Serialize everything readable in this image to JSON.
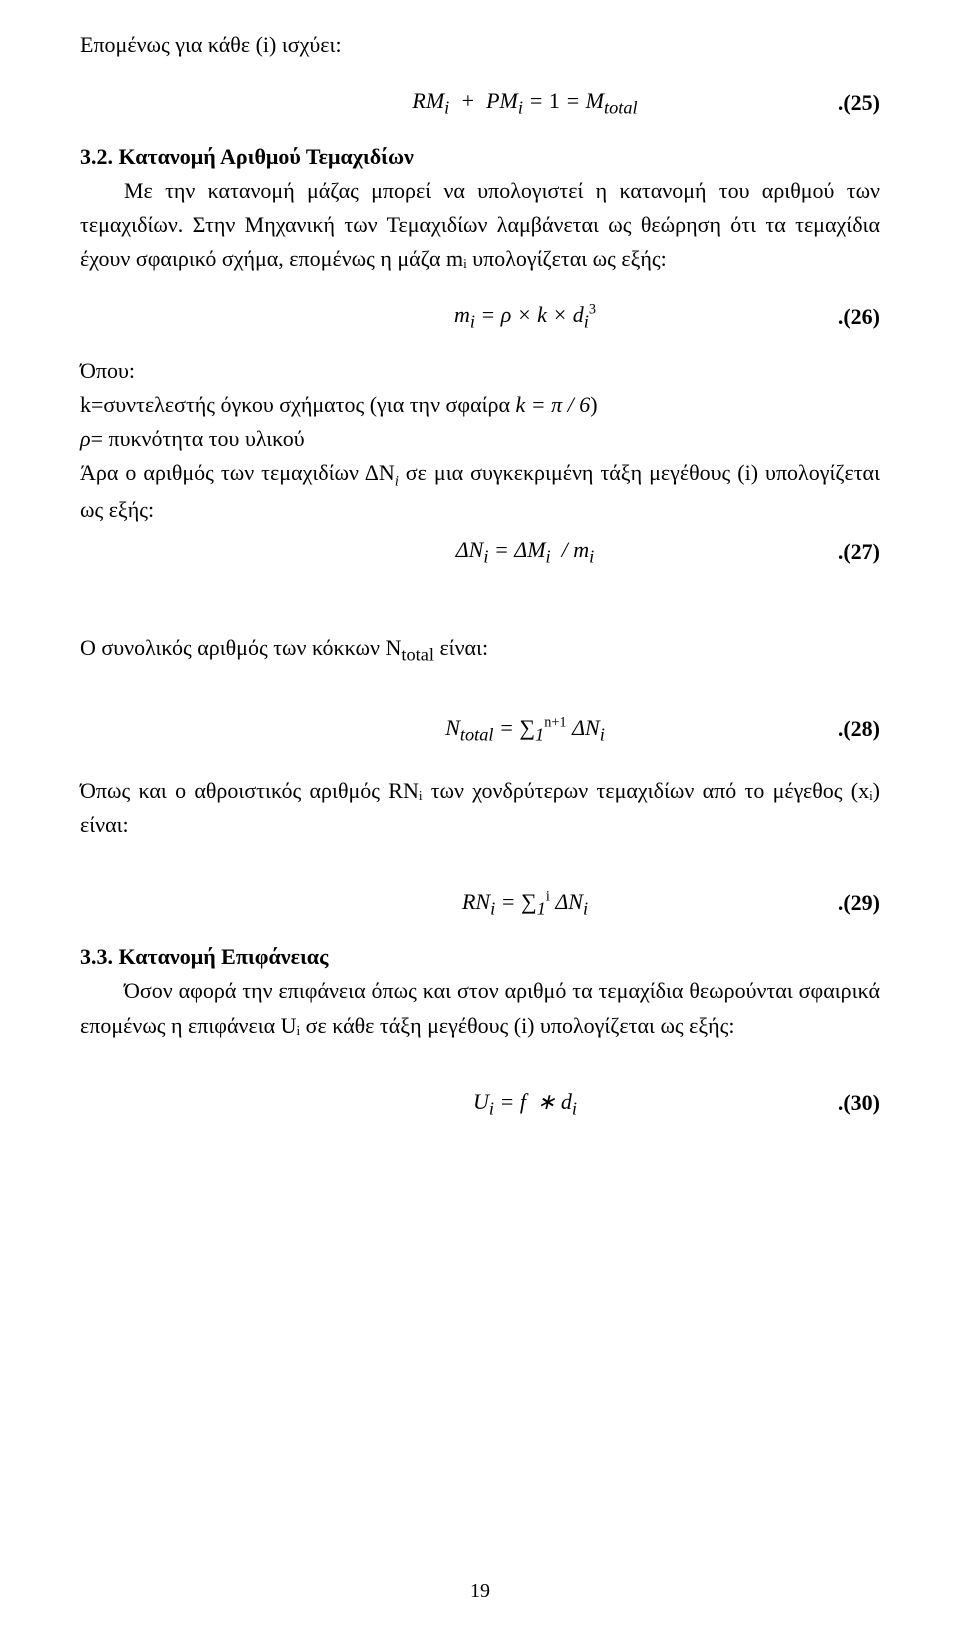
{
  "line1": "Επομένως για κάθε (i) ισχύει:",
  "eq25": {
    "formula": "RM<sub>i</sub> &nbsp;+&nbsp; PM<sub>i</sub> = <span class='up'>1</span> = M<sub>total</sub>",
    "num": ".(25)"
  },
  "sec32": {
    "heading": "3.2. Κατανομή Αριθμού Τεμαχιδίων",
    "p1": "Με την κατανομή μάζας μπορεί να υπολογιστεί η κατανομή του αριθμού των τεμαχιδίων. Στην Μηχανική των Τεμαχιδίων λαμβάνεται ως θεώρηση ότι τα τεμαχίδια έχουν σφαιρικό σχήμα, επομένως η μάζα mᵢ υπολογίζεται ως εξής:"
  },
  "eq26": {
    "formula": "m<sub>i</sub> = ρ × k × d<sub>i</sub><span class='sup'>3</span>",
    "num": ".(26)"
  },
  "opou": "Όπου:",
  "k_line_pre": "k=συντελεστής όγκου σχήματος (για την σφαίρα ",
  "k_line_math": "k = π / <span class='up'>6</span>",
  "k_line_post": ")",
  "rho_line_pre": "ρ",
  "rho_line_post": "= πυκνότητα του υλικού",
  "para2a": "Άρα ο αριθμός των τεμαχιδίων ΔΝ",
  "para2b": " σε μια συγκεκριμένη τάξη μεγέθους (i) υπολογίζεται ως εξής:",
  "eq27": {
    "formula": "ΔN<sub>i</sub> = ΔM<sub>i</sub> &nbsp;/ m<sub>i</sub>",
    "num": ".(27)"
  },
  "para3": "Ο συνολικός αριθμός των κόκκων N<sub>total</sub> είναι:",
  "eq28": {
    "formula": "N<sub>total</sub> = <span class='up'>∑</span><sub>1</sub><span class='sup'>n+1</span> ΔN<sub>i</sub>",
    "num": ".(28)"
  },
  "para4": "Όπως και ο αθροιστικός αριθμός RNᵢ των χονδρύτερων τεμαχιδίων από το μέγεθος (xᵢ) είναι:",
  "eq29": {
    "formula": "RN<sub>i</sub> = <span class='up'>∑</span><sub>1</sub><span class='sup'>i</span> ΔN<sub>i</sub>",
    "num": ".(29)"
  },
  "sec33": {
    "heading": "3.3. Κατανομή Επιφάνειας",
    "p1": "Όσον αφορά την επιφάνεια όπως και στον αριθμό τα τεμαχίδια θεωρούνται σφαιρικά επομένως η επιφάνεια Uᵢ σε κάθε τάξη μεγέθους (i) υπολογίζεται ως εξής:"
  },
  "eq30": {
    "formula": "U<sub>i</sub> = f &nbsp;∗ d<sub>i</sub>",
    "num": ".(30)"
  },
  "page_number": "19"
}
